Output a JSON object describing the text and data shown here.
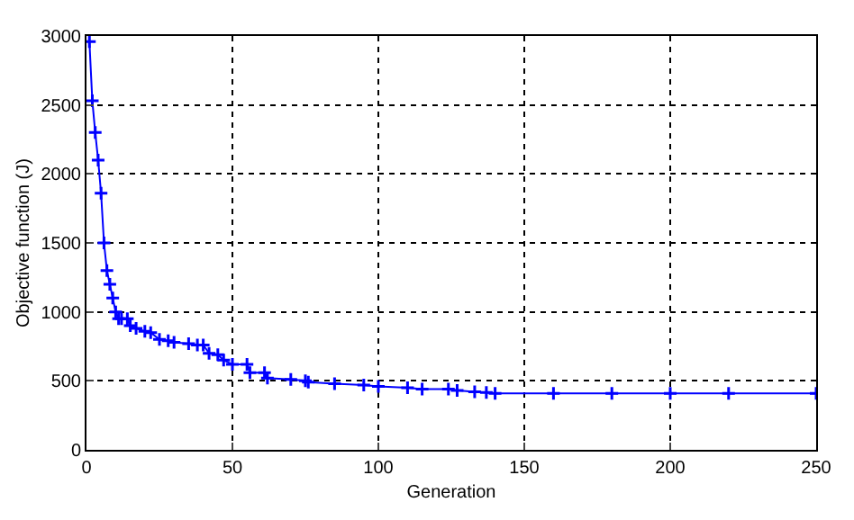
{
  "chart_data": {
    "type": "line",
    "xlabel": "Generation",
    "ylabel": "Objective function (J)",
    "x": [
      1,
      2,
      3,
      4,
      5,
      6,
      7,
      8,
      9,
      10,
      11,
      12,
      14,
      15,
      17,
      20,
      22,
      25,
      28,
      30,
      35,
      38,
      40,
      42,
      45,
      47,
      50,
      55,
      56,
      61,
      62,
      70,
      75,
      76,
      85,
      95,
      100,
      110,
      115,
      124,
      127,
      133,
      137,
      140,
      160,
      180,
      200,
      220,
      250
    ],
    "series": [
      {
        "color": "#0000ff",
        "values": [
          2960,
          2530,
          2300,
          2100,
          1860,
          1500,
          1300,
          1200,
          1100,
          1000,
          950,
          950,
          950,
          900,
          880,
          860,
          850,
          800,
          790,
          780,
          770,
          760,
          760,
          700,
          690,
          650,
          620,
          620,
          560,
          560,
          520,
          510,
          500,
          490,
          480,
          470,
          460,
          450,
          440,
          440,
          430,
          420,
          415,
          410,
          410,
          410,
          410,
          410,
          410
        ]
      }
    ],
    "xlim": [
      0,
      250
    ],
    "ylim": [
      0,
      3000
    ],
    "xticks": [
      0,
      50,
      100,
      150,
      200,
      250
    ],
    "yticks": [
      0,
      500,
      1000,
      1500,
      2000,
      2500,
      3000
    ],
    "grid": true,
    "marker": "cross",
    "line_style": "solid",
    "legend": false
  }
}
